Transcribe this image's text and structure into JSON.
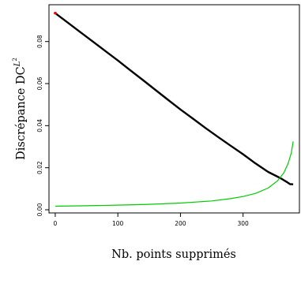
{
  "chart_data": {
    "type": "line",
    "xlabel": "Nb. points supprimés",
    "ylabel": {
      "main": "Discrépance DC",
      "sup": "L",
      "sup2": "2"
    },
    "xlim": [
      -10,
      390
    ],
    "ylim": [
      -0.0015,
      0.0975
    ],
    "x_ticks": [
      0,
      100,
      200,
      300
    ],
    "y_ticks": [
      0.0,
      0.02,
      0.04,
      0.06,
      0.08
    ],
    "x_tick_labels": [
      "0",
      "100",
      "200",
      "300"
    ],
    "y_tick_labels": [
      "0.00",
      "0.02",
      "0.04",
      "0.06",
      "0.08"
    ],
    "grid": false,
    "series": [
      {
        "color": "#000000",
        "points": [
          [
            0,
            0.0935
          ],
          [
            20,
            0.089
          ],
          [
            40,
            0.0845
          ],
          [
            60,
            0.08
          ],
          [
            80,
            0.0755
          ],
          [
            100,
            0.071
          ],
          [
            120,
            0.0663
          ],
          [
            140,
            0.0617
          ],
          [
            160,
            0.057
          ],
          [
            180,
            0.0523
          ],
          [
            200,
            0.0477
          ],
          [
            220,
            0.0433
          ],
          [
            240,
            0.0389
          ],
          [
            260,
            0.0346
          ],
          [
            280,
            0.0305
          ],
          [
            300,
            0.0264
          ],
          [
            320,
            0.022
          ],
          [
            340,
            0.018
          ],
          [
            360,
            0.015
          ],
          [
            370,
            0.0132
          ],
          [
            375,
            0.0122
          ],
          [
            380,
            0.0121
          ]
        ]
      },
      {
        "color": "#00cc00",
        "points": [
          [
            0,
            0.0017
          ],
          [
            50,
            0.0019
          ],
          [
            100,
            0.0022
          ],
          [
            150,
            0.0026
          ],
          [
            200,
            0.0032
          ],
          [
            250,
            0.0042
          ],
          [
            280,
            0.0053
          ],
          [
            300,
            0.0063
          ],
          [
            320,
            0.0078
          ],
          [
            340,
            0.0103
          ],
          [
            355,
            0.0138
          ],
          [
            365,
            0.0175
          ],
          [
            372,
            0.022
          ],
          [
            377,
            0.027
          ],
          [
            380,
            0.0325
          ]
        ]
      }
    ],
    "highlight": {
      "color": "#ff0000",
      "x": 0,
      "y": 0.0935
    }
  }
}
